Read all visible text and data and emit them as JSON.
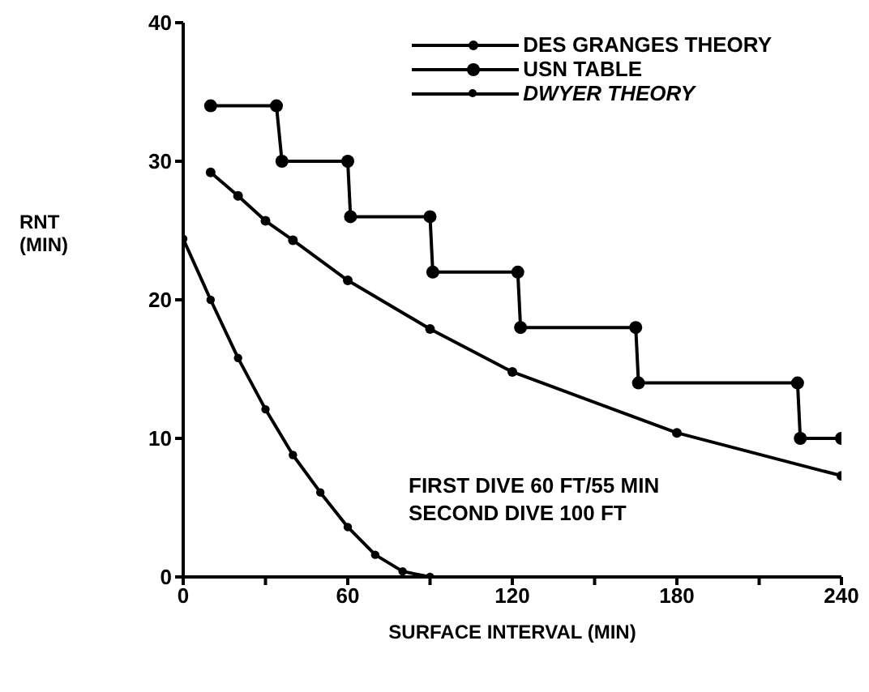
{
  "chart_data": {
    "type": "line",
    "xlabel": "SURFACE INTERVAL (MIN)",
    "ylabel": "RNT (MIN)",
    "series": [
      {
        "name": "DES GRANGES THEORY",
        "color": "#000000",
        "x": [
          10,
          20,
          30,
          40,
          60,
          90,
          120,
          180,
          240
        ],
        "values": [
          29.2,
          27.5,
          25.7,
          24.3,
          21.4,
          17.9,
          14.8,
          10.4,
          7.3
        ]
      },
      {
        "name": "USN TABLE",
        "color": "#000000",
        "x": [
          10,
          34,
          36,
          60,
          61,
          90,
          91,
          122,
          123,
          165,
          166,
          224,
          225,
          240
        ],
        "values": [
          34,
          34,
          30,
          30,
          26,
          26,
          22,
          22,
          18,
          18,
          14,
          14,
          10,
          10
        ]
      },
      {
        "name": "DWYER THEORY",
        "color": "#000000",
        "x": [
          0,
          10,
          20,
          30,
          40,
          50,
          60,
          70,
          80,
          90
        ],
        "values": [
          24.4,
          20,
          15.8,
          12.1,
          8.8,
          6.1,
          3.6,
          1.6,
          0.4,
          0
        ]
      }
    ],
    "xlim": [
      0,
      240
    ],
    "xticks": [
      0,
      {
        "value": 30,
        "label": null
      },
      60,
      {
        "value": 90,
        "label": null
      },
      120,
      {
        "value": 150,
        "label": null
      },
      180,
      {
        "value": 210,
        "label": null
      },
      240
    ],
    "ylim": [
      0,
      40
    ],
    "yticks": [
      0,
      10,
      20,
      30,
      40
    ],
    "legend": "top right",
    "marker": "circle",
    "line_style": "solid",
    "grid": false,
    "annotations": [
      "FIRST DIVE 60 FT/55 MIN",
      "SECOND DIVE 100 FT"
    ]
  }
}
